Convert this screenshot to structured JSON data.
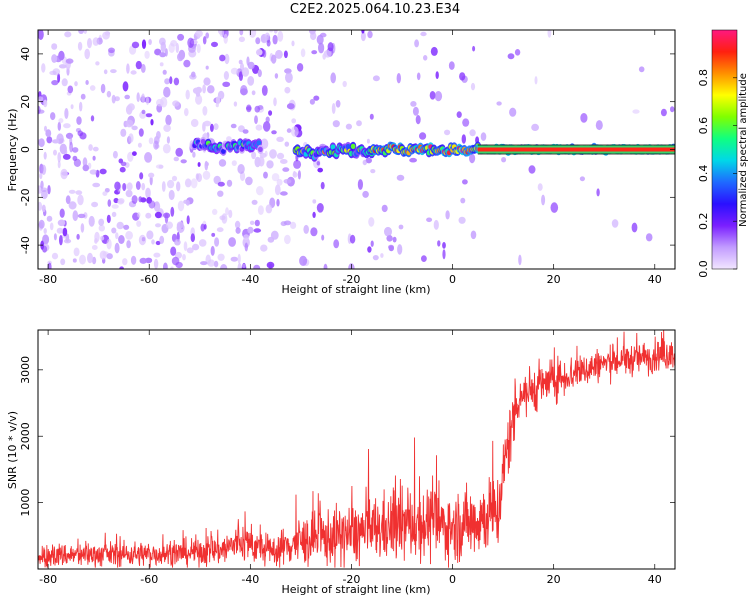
{
  "figure": {
    "title": "C2E2.2025.064.10.23.E34"
  },
  "chart_data": [
    {
      "type": "heatmap",
      "xlabel": "Height of straight line (km)",
      "ylabel": "Frequency (Hz)",
      "xlim": [
        -82,
        44
      ],
      "ylim": [
        -50,
        50
      ],
      "x_ticks": [
        -80,
        -60,
        -40,
        -20,
        0,
        20,
        40
      ],
      "y_ticks": [
        -40,
        -20,
        0,
        20,
        40
      ],
      "colorbar": {
        "label": "Normalized spectral amplitude",
        "range": [
          0,
          1
        ],
        "ticks": [
          0.0,
          0.2,
          0.4,
          0.6,
          0.8
        ],
        "tick_labels": [
          "0.0",
          "0.2",
          "0.4",
          "0.6",
          "0.8"
        ],
        "colormap": [
          "#f2e6ff",
          "#c29cff",
          "#7a1fff",
          "#2a10ff",
          "#1f6aff",
          "#00d8e8",
          "#10ff80",
          "#80ff00",
          "#ffff00",
          "#ff9000",
          "#ff2010",
          "#ff1880"
        ]
      },
      "features": {
        "noise_region_x": [
          -82,
          -31
        ],
        "line_segments": [
          {
            "x_start": -51,
            "x_end": -38,
            "freq": 1.5,
            "amplitude": 0.35
          },
          {
            "x_start": -31,
            "x_end": -16,
            "freq": -0.5,
            "amplitude": 0.55
          },
          {
            "x_start": -16,
            "x_end": 5,
            "freq": 0,
            "amplitude": 0.75
          },
          {
            "x_start": 5,
            "x_end": 44,
            "freq": 0,
            "amplitude": 0.95
          }
        ]
      }
    },
    {
      "type": "line",
      "xlabel": "Height of straight line (km)",
      "ylabel": "SNR (10 * v/v)",
      "xlim": [
        -82,
        44
      ],
      "ylim": [
        0,
        3600
      ],
      "x_ticks": [
        -80,
        -60,
        -40,
        -20,
        0,
        20,
        40
      ],
      "y_ticks": [
        1000,
        2000,
        3000
      ],
      "color": "#f03030",
      "series": [
        {
          "x": [
            -82,
            -70,
            -55,
            -45,
            -42,
            -36,
            -31,
            -26,
            -20,
            -12,
            -5,
            0,
            5,
            9,
            11,
            13,
            20,
            30,
            44
          ],
          "mean": [
            200,
            220,
            230,
            300,
            420,
            260,
            400,
            460,
            520,
            640,
            700,
            620,
            750,
            860,
            1900,
            2600,
            2850,
            3100,
            3250
          ],
          "spread": [
            160,
            170,
            170,
            230,
            280,
            200,
            320,
            380,
            420,
            480,
            500,
            450,
            520,
            520,
            500,
            350,
            280,
            220,
            220
          ]
        }
      ]
    }
  ]
}
